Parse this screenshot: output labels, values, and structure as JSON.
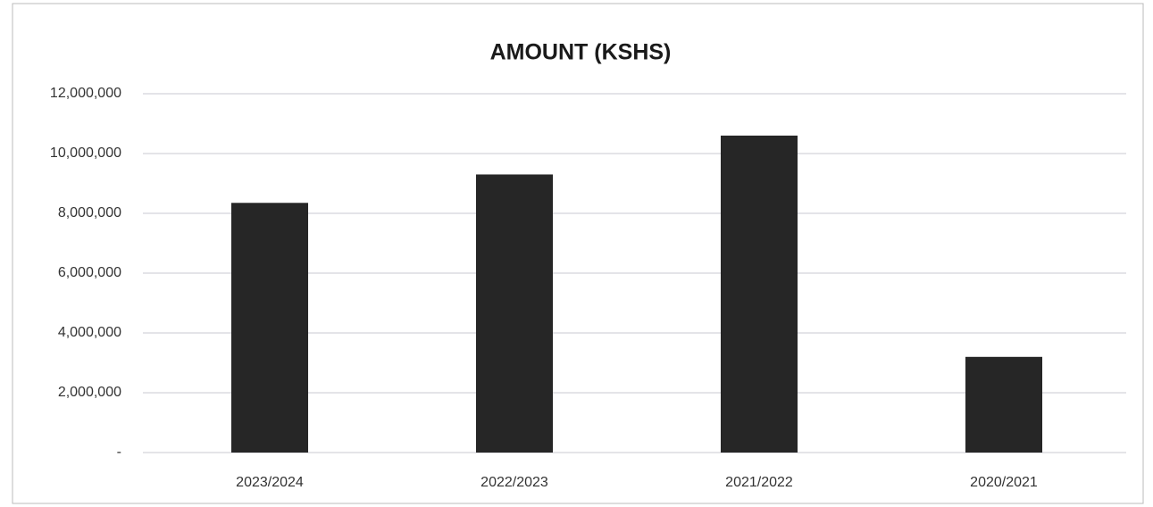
{
  "chart_data": {
    "type": "bar",
    "title": "AMOUNT (KSHS)",
    "categories": [
      "2023/2024",
      "2022/2023",
      "2021/2022",
      "2020/2021"
    ],
    "values": [
      8350000,
      9300000,
      10600000,
      3200000
    ],
    "color": "#262626",
    "ylim": [
      0,
      12000000
    ],
    "yticks": [
      {
        "value": 0,
        "label": "-"
      },
      {
        "value": 2000000,
        "label": "2,000,000"
      },
      {
        "value": 4000000,
        "label": "4,000,000"
      },
      {
        "value": 6000000,
        "label": "6,000,000"
      },
      {
        "value": 8000000,
        "label": "8,000,000"
      },
      {
        "value": 10000000,
        "label": "10,000,000"
      },
      {
        "value": 12000000,
        "label": "12,000,000"
      }
    ],
    "grid": true
  }
}
